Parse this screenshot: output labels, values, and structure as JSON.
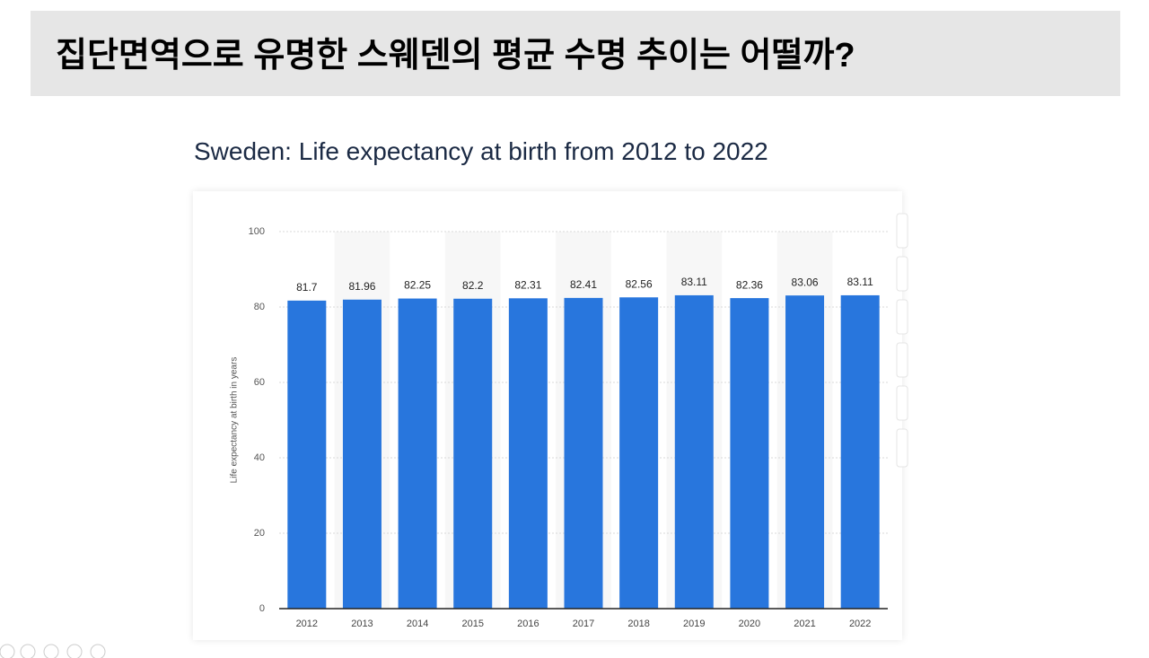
{
  "header": {
    "title": "집단면역으로 유명한 스웨덴의 평균 수명 추이는 어떨까?"
  },
  "chart_data": {
    "type": "bar",
    "title": "Sweden: Life expectancy at birth from 2012 to 2022",
    "y_label": "Life expectancy at birth in years",
    "categories": [
      "2012",
      "2013",
      "2014",
      "2015",
      "2016",
      "2017",
      "2018",
      "2019",
      "2020",
      "2021",
      "2022"
    ],
    "values": [
      81.7,
      81.96,
      82.25,
      82.2,
      82.31,
      82.41,
      82.56,
      83.11,
      82.36,
      83.06,
      83.11
    ],
    "color": "#2876dd",
    "ylim": [
      0,
      100
    ],
    "yticks": [
      0,
      20,
      40,
      60,
      80,
      100
    ],
    "grid": true
  }
}
